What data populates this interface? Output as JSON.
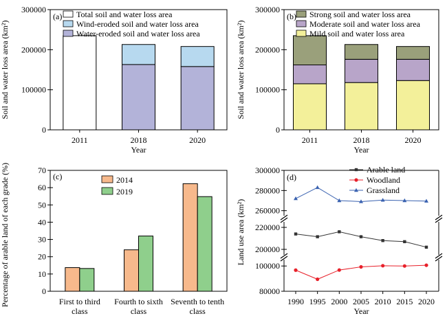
{
  "chart_data": [
    {
      "panel": "(a)",
      "type": "bar",
      "stacked": true,
      "categories": [
        "2011",
        "2018",
        "2020"
      ],
      "series": [
        {
          "name": "Total soil and water loss area",
          "color": "#ffffff",
          "values": [
            235000,
            null,
            null
          ]
        },
        {
          "name": "Water-eroded soil and water loss area",
          "color": "#b3b3d9",
          "values": [
            null,
            163000,
            158000
          ]
        },
        {
          "name": "Wind-eroded soil and water loss area",
          "color": "#b7d9ef",
          "values": [
            null,
            50000,
            50000
          ]
        }
      ],
      "xlabel": "Year",
      "ylabel": "Soil and water loss area (km²)",
      "ylim": [
        0,
        300000
      ],
      "yticks": [
        "0",
        "100000",
        "200000",
        "300000"
      ],
      "legend": "top-right"
    },
    {
      "panel": "(b)",
      "type": "bar",
      "stacked": true,
      "categories": [
        "2011",
        "2018",
        "2020"
      ],
      "series": [
        {
          "name": "Mild soil and water loss area",
          "color": "#f3f09a",
          "values": [
            115000,
            118000,
            123000
          ]
        },
        {
          "name": "Moderate soil and water loss area",
          "color": "#b8a5c9",
          "values": [
            47000,
            58000,
            53000
          ]
        },
        {
          "name": "Strong soil and water loss area",
          "color": "#9aa07b",
          "values": [
            73000,
            37000,
            32000
          ]
        }
      ],
      "xlabel": "Year",
      "ylabel": "Soil and water loss area (km²)",
      "ylim": [
        0,
        300000
      ],
      "yticks": [
        "0",
        "100000",
        "200000",
        "300000"
      ],
      "legend": "top-right"
    },
    {
      "panel": "(c)",
      "type": "bar",
      "categories": [
        "First to third class",
        "Fourth to sixth class",
        "Seventh to tenth class"
      ],
      "series": [
        {
          "name": "2014",
          "color": "#f7b98c",
          "values": [
            13.7,
            24,
            62.3
          ]
        },
        {
          "name": "2019",
          "color": "#8fcf8c",
          "values": [
            13.2,
            32,
            54.8
          ]
        }
      ],
      "xlabel": "",
      "ylabel": "Percentage of arable land of each grade (%)",
      "ylim": [
        0,
        70
      ],
      "yticks": [
        "0",
        "10",
        "20",
        "30",
        "40",
        "50",
        "60",
        "70"
      ],
      "legend": "top-left"
    },
    {
      "panel": "(d)",
      "type": "line",
      "x": [
        1990,
        1995,
        2000,
        2005,
        2010,
        2015,
        2020
      ],
      "series": [
        {
          "name": "Arable land",
          "color": "#333333",
          "marker": "square",
          "values": [
            214000,
            211500,
            216000,
            211500,
            208000,
            207000,
            202000
          ]
        },
        {
          "name": "Woodland",
          "color": "#e8202a",
          "marker": "circle",
          "values": [
            96700,
            89500,
            96800,
            99300,
            100200,
            100000,
            100600
          ]
        },
        {
          "name": "Grassland",
          "color": "#3a62b0",
          "marker": "triangle",
          "values": [
            272000,
            283000,
            270000,
            269000,
            270500,
            270000,
            269500
          ]
        }
      ],
      "xlabel": "Year",
      "ylabel": "Land use area (km²)",
      "broken_axis_segments": [
        [
          80000,
          105000
        ],
        [
          195000,
          225000
        ],
        [
          255000,
          300000
        ]
      ],
      "yticks": [
        "80000",
        "100000",
        "200000",
        "220000",
        "260000",
        "280000",
        "300000"
      ],
      "legend": "top-center"
    }
  ]
}
